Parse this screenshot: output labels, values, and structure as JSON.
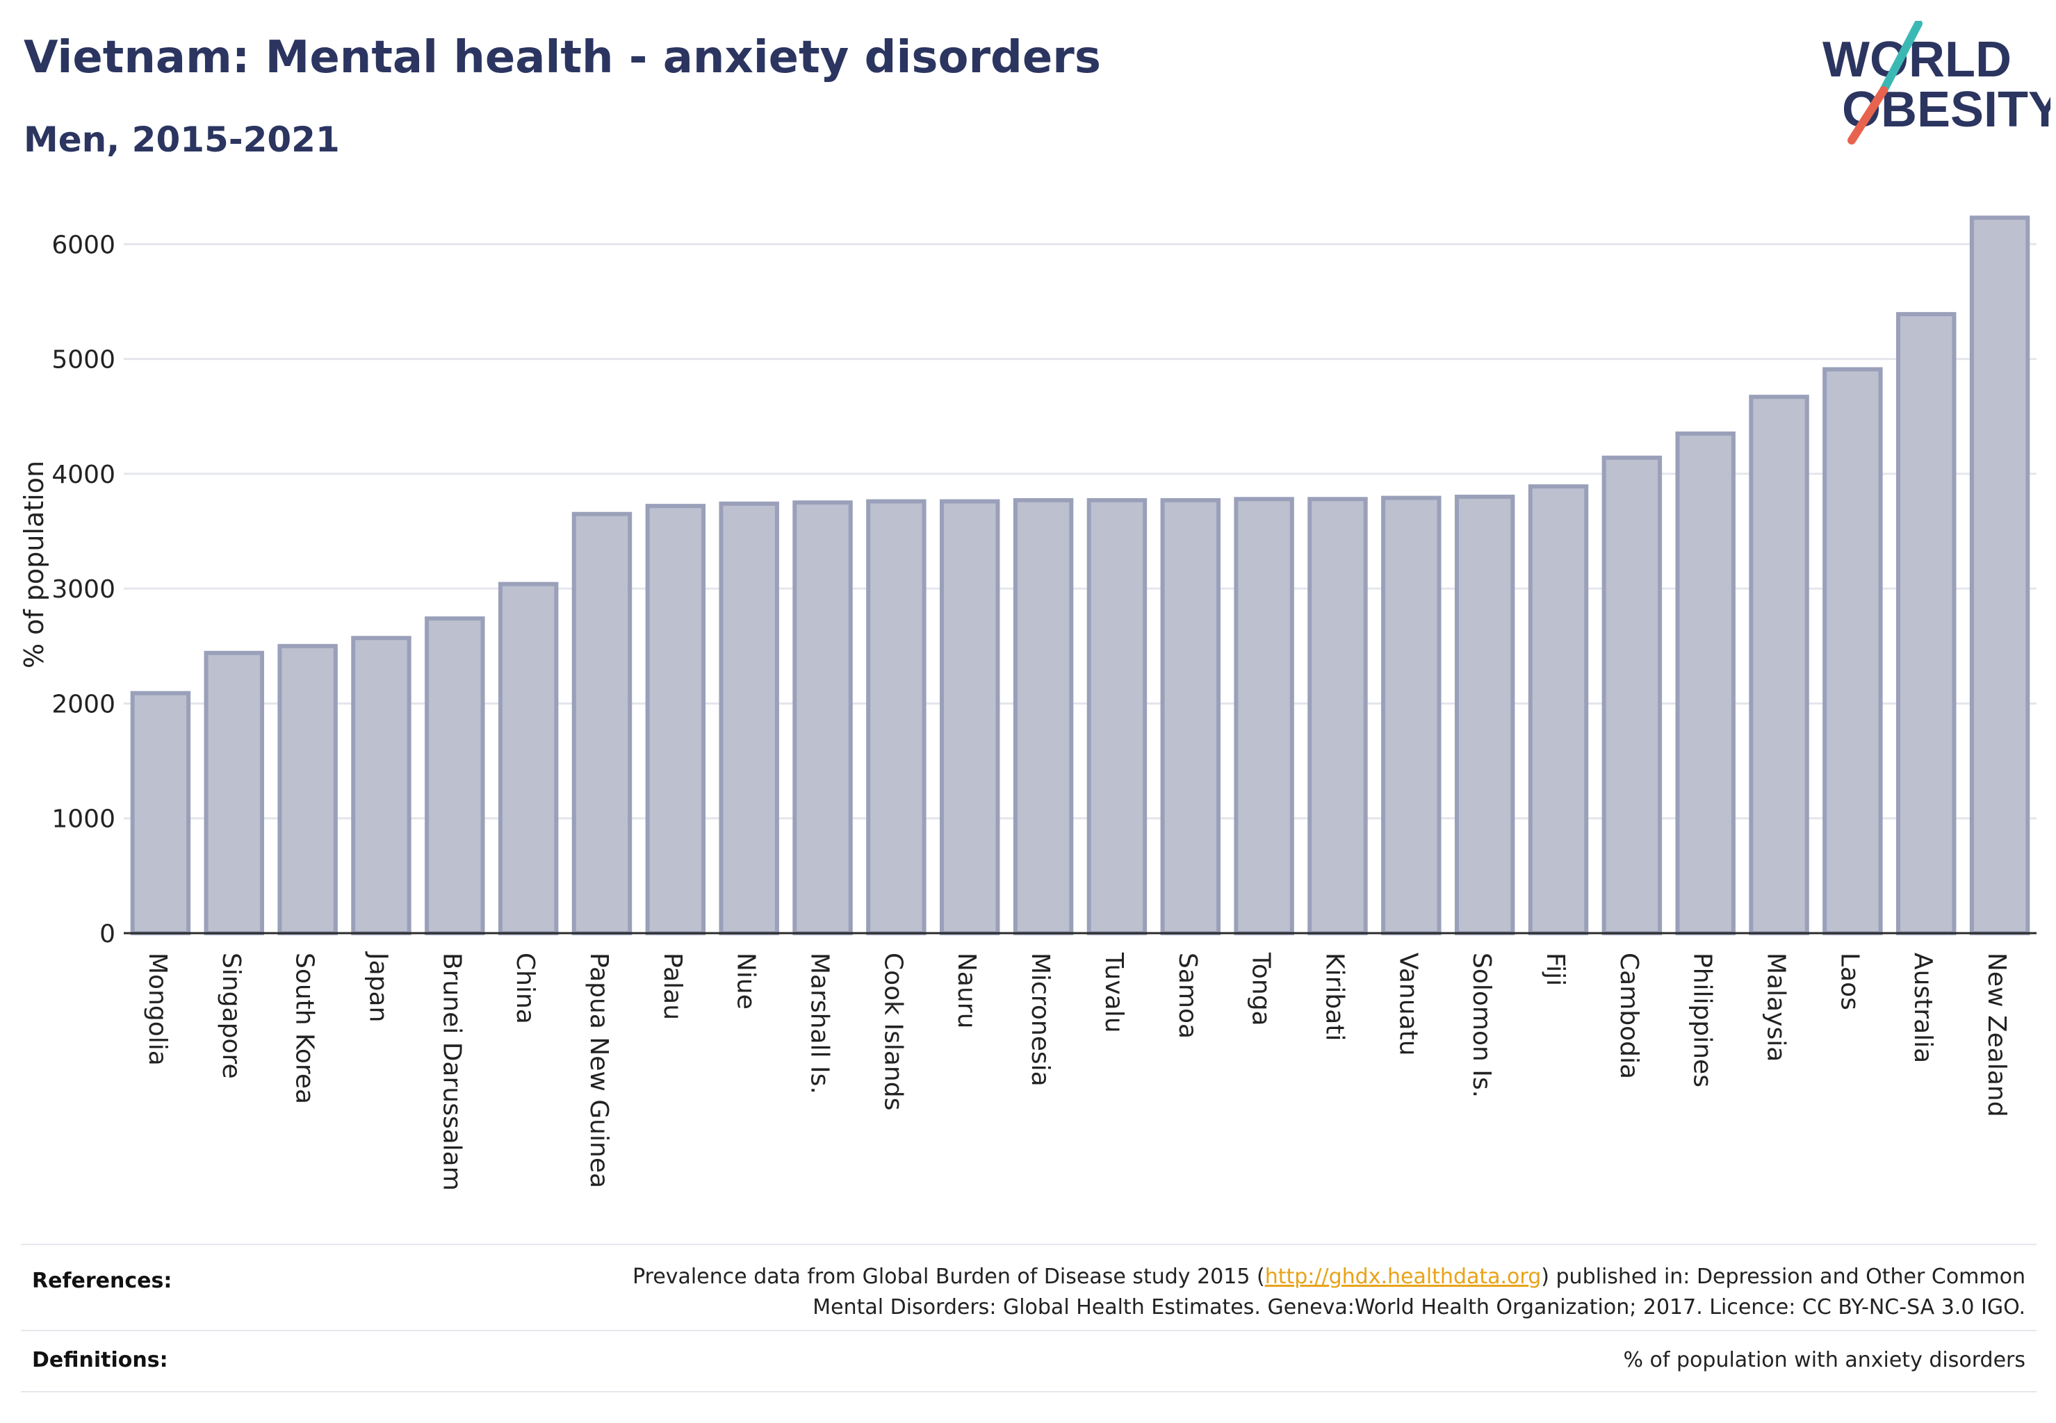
{
  "header": {
    "title": "Vietnam: Mental health - anxiety disorders",
    "subtitle": "Men, 2015-2021"
  },
  "logo": {
    "line1": "WORLD",
    "line2": "OBESITY",
    "slash_colors": [
      "#3bb8b4",
      "#e8634e"
    ]
  },
  "colors": {
    "bar_fill": "#bcc0cf",
    "bar_stroke": "#9aa0b9",
    "text_dark": "#2b3560",
    "grid": "#e4e6ec",
    "link": "#e8a317"
  },
  "chart_data": {
    "type": "bar",
    "ylabel": "% of population",
    "ylim": [
      0,
      6250
    ],
    "yticks": [
      0,
      1000,
      2000,
      3000,
      4000,
      5000,
      6000
    ],
    "grid": true,
    "categories": [
      "Mongolia",
      "Singapore",
      "South Korea",
      "Japan",
      "Brunei Darussalam",
      "China",
      "Papua New Guinea",
      "Palau",
      "Niue",
      "Marshall Is.",
      "Cook Islands",
      "Nauru",
      "Micronesia",
      "Tuvalu",
      "Samoa",
      "Tonga",
      "Kiribati",
      "Vanuatu",
      "Solomon Is.",
      "Fiji",
      "Cambodia",
      "Philippines",
      "Malaysia",
      "Laos",
      "Australia",
      "New Zealand"
    ],
    "values": [
      2090,
      2440,
      2500,
      2570,
      2740,
      3040,
      3650,
      3720,
      3740,
      3750,
      3760,
      3760,
      3770,
      3770,
      3770,
      3780,
      3780,
      3790,
      3800,
      3890,
      4140,
      4350,
      4670,
      4910,
      5390,
      6230
    ]
  },
  "footer": {
    "references_label": "References:",
    "references_line1_pre": "Prevalence data from Global Burden of Disease study 2015 (",
    "references_link": "http://ghdx.healthdata.org",
    "references_line1_post": ") published in: Depression and Other Common",
    "references_line2": "Mental Disorders: Global Health Estimates. Geneva:World Health Organization; 2017. Licence: CC BY-NC-SA 3.0 IGO.",
    "definitions_label": "Definitions:",
    "definitions_value": "% of population with anxiety disorders"
  }
}
